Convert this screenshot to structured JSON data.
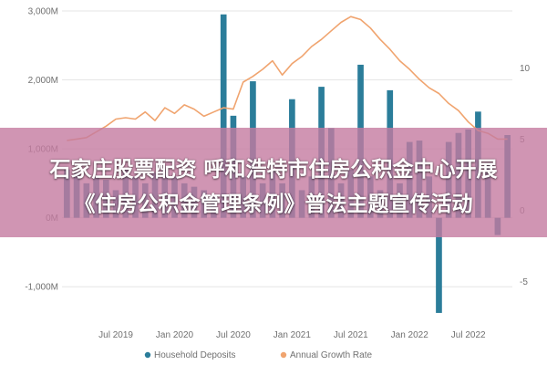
{
  "colors": {
    "bars": "#2b7d9a",
    "line": "#f0a46f",
    "grid": "#e6e6e6",
    "overlay": "#c47aa0",
    "text": "#707070"
  },
  "overlay": {
    "line1": "石家庄股票配资 呼和浩特市住房公积金中心开展",
    "line2": "《住房公积金管理条例》普法主题宣传活动"
  },
  "chart_data": {
    "type": "bar",
    "title": "",
    "legend_position": "bottom",
    "grid": true,
    "left_axis": {
      "range": [
        -1500,
        3000
      ],
      "ticks": [
        {
          "v": 3000,
          "label": "3,000M"
        },
        {
          "v": 2000,
          "label": "2,000M"
        },
        {
          "v": 1000,
          "label": "1,000M"
        },
        {
          "v": 0,
          "label": "0M"
        },
        {
          "v": -1000,
          "label": "-1,000M"
        }
      ]
    },
    "right_axis": {
      "range": [
        -7.8,
        14.0
      ],
      "ticks": [
        {
          "v": 10,
          "label": "10"
        },
        {
          "v": 5,
          "label": "5"
        },
        {
          "v": 0,
          "label": "0"
        },
        {
          "v": -5,
          "label": "-5"
        }
      ]
    },
    "x_ticks": [
      {
        "i": 5.5,
        "label": "Jul 2019"
      },
      {
        "i": 11.5,
        "label": "Jan 2020"
      },
      {
        "i": 17.5,
        "label": "Jul 2020"
      },
      {
        "i": 23.5,
        "label": "Jan 2021"
      },
      {
        "i": 29.5,
        "label": "Jul 2021"
      },
      {
        "i": 35.5,
        "label": "Jan 2022"
      },
      {
        "i": 41.5,
        "label": "Jul 2022"
      }
    ],
    "series": [
      {
        "name": "Household Deposits",
        "kind": "bar",
        "axis": "left",
        "values": [
          700,
          650,
          500,
          600,
          550,
          400,
          700,
          600,
          500,
          650,
          700,
          600,
          500,
          450,
          400,
          300,
          2950,
          1480,
          600,
          1980,
          500,
          700,
          500,
          1720,
          400,
          600,
          1900,
          1300,
          500,
          700,
          2220,
          600,
          400,
          1850,
          500,
          1100,
          1120,
          600,
          -1380,
          1100,
          1230,
          1280,
          1540,
          800,
          -250,
          1200
        ]
      },
      {
        "name": "Annual Growth Rate",
        "kind": "line",
        "axis": "right",
        "values": [
          4.9,
          5.0,
          5.1,
          5.5,
          5.9,
          6.4,
          6.5,
          6.4,
          6.9,
          6.3,
          7.2,
          6.8,
          7.4,
          7.1,
          6.6,
          6.9,
          7.2,
          7.1,
          9.0,
          9.4,
          9.9,
          10.5,
          9.5,
          10.3,
          10.8,
          11.5,
          12.0,
          12.6,
          13.2,
          13.6,
          13.4,
          12.8,
          12.0,
          11.3,
          10.5,
          9.9,
          9.2,
          8.6,
          8.2,
          7.5,
          7.0,
          6.2,
          5.6,
          5.4,
          5.0,
          5.0
        ]
      }
    ]
  }
}
